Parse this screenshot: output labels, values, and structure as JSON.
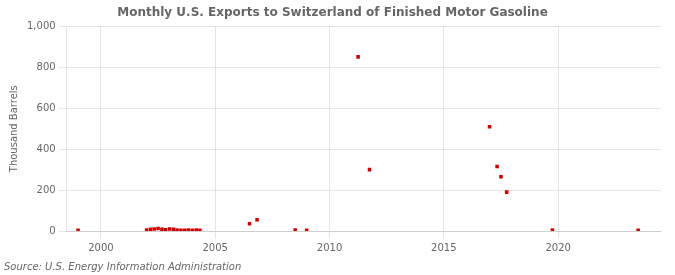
{
  "chart_data": {
    "type": "scatter",
    "title": "Monthly U.S. Exports to Switzerland of Finished Motor Gasoline",
    "y_label": "Thousand Barrels",
    "annotations": [
      "Source: U.S. Energy Information Administration"
    ],
    "x": [
      1999.0,
      2002.0,
      2002.17,
      2002.33,
      2002.5,
      2002.67,
      2002.83,
      2003.0,
      2003.17,
      2003.33,
      2003.5,
      2003.67,
      2003.83,
      2004.0,
      2004.17,
      2004.33,
      2006.5,
      2006.83,
      2008.5,
      2009.0,
      2011.25,
      2011.75,
      2017.0,
      2017.33,
      2017.5,
      2017.75,
      2019.75,
      2023.5
    ],
    "values": [
      3,
      5,
      8,
      10,
      12,
      8,
      6,
      10,
      8,
      5,
      4,
      3,
      5,
      3,
      5,
      3,
      35,
      55,
      5,
      3,
      851,
      300,
      510,
      315,
      265,
      190,
      5,
      3
    ],
    "color": "#cc0000",
    "marker": "square",
    "xlim": [
      1998.5,
      2024.5
    ],
    "ylim": [
      0,
      1000
    ],
    "xticks": [
      2000,
      2005,
      2010,
      2015,
      2020
    ],
    "yticks": [
      0,
      200,
      400,
      600,
      800,
      {
        "value": 1000,
        "label": "1,000"
      }
    ],
    "grid": true
  }
}
